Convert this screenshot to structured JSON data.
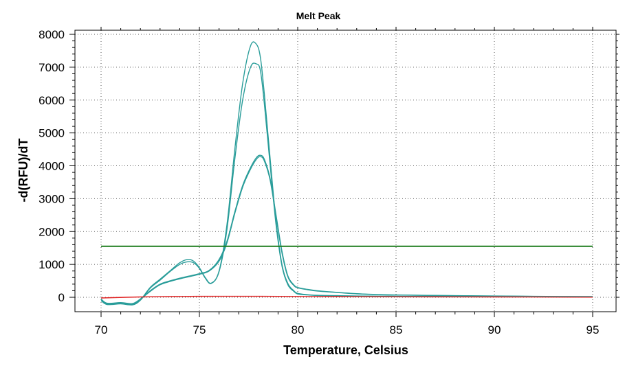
{
  "chart_data": {
    "type": "line",
    "title": "Melt Peak",
    "xlabel": "Temperature, Celsius",
    "ylabel": "-d(RFU)/dT",
    "xlim": [
      70,
      95
    ],
    "ylim": [
      -350,
      8150
    ],
    "x_ticks": [
      70,
      75,
      80,
      85,
      90,
      95
    ],
    "y_ticks": [
      0,
      1000,
      2000,
      3000,
      4000,
      5000,
      6000,
      7000,
      8000
    ],
    "grid": true,
    "colors": {
      "sample": "#2a9d9a",
      "threshold": "#1e7d1e",
      "negative": "#e02020"
    },
    "series": [
      {
        "role": "sample",
        "x": [
          70,
          70.3,
          71,
          71.6,
          72,
          72.5,
          73,
          73.5,
          74,
          74.4,
          74.7,
          75,
          75.3,
          75.6,
          76,
          76.4,
          76.8,
          77.2,
          77.6,
          77.9,
          78.1,
          78.3,
          78.6,
          78.9,
          79.2,
          79.5,
          79.8,
          80,
          80.5,
          81,
          82,
          83,
          85,
          88,
          90,
          92,
          95
        ],
        "y": [
          -100,
          -200,
          -180,
          -210,
          -80,
          300,
          550,
          800,
          1050,
          1150,
          1100,
          900,
          600,
          430,
          800,
          2200,
          4500,
          6500,
          7650,
          7700,
          7300,
          6200,
          4200,
          2300,
          1000,
          420,
          200,
          120,
          80,
          60,
          50,
          40,
          30,
          25,
          20,
          15,
          10
        ]
      },
      {
        "role": "sample",
        "x": [
          70,
          70.3,
          71,
          71.6,
          72,
          72.5,
          73,
          73.5,
          74,
          74.4,
          74.7,
          75,
          75.3,
          75.6,
          76,
          76.4,
          76.8,
          77.2,
          77.6,
          77.9,
          78.1,
          78.3,
          78.6,
          78.9,
          79.2,
          79.5,
          79.8,
          80,
          80.5,
          81,
          82,
          83,
          85,
          88,
          90,
          92,
          95
        ],
        "y": [
          -100,
          -220,
          -200,
          -230,
          -90,
          280,
          520,
          780,
          1000,
          1080,
          1050,
          880,
          580,
          420,
          780,
          2050,
          4200,
          6000,
          7000,
          7100,
          6900,
          5900,
          4000,
          2200,
          950,
          380,
          180,
          100,
          70,
          55,
          45,
          38,
          28,
          22,
          18,
          14,
          10
        ]
      },
      {
        "role": "sample",
        "x": [
          70,
          70.3,
          71,
          71.6,
          72,
          72.5,
          73,
          73.5,
          74,
          75,
          75.5,
          76,
          76.4,
          76.8,
          77.2,
          77.6,
          77.9,
          78.1,
          78.3,
          78.6,
          78.9,
          79.2,
          79.5,
          79.8,
          80,
          80.5,
          81,
          82,
          83,
          84,
          85,
          88,
          90,
          92,
          95
        ],
        "y": [
          -50,
          -180,
          -160,
          -190,
          -50,
          200,
          400,
          500,
          580,
          720,
          820,
          1150,
          1700,
          2600,
          3400,
          3950,
          4250,
          4320,
          4200,
          3600,
          2500,
          1400,
          650,
          380,
          300,
          240,
          200,
          150,
          110,
          85,
          70,
          50,
          40,
          30,
          20
        ]
      },
      {
        "role": "sample",
        "x": [
          70,
          70.3,
          71,
          71.6,
          72,
          72.5,
          73,
          73.5,
          74,
          75,
          75.5,
          76,
          76.4,
          76.8,
          77.2,
          77.6,
          77.9,
          78.1,
          78.3,
          78.6,
          78.9,
          79.2,
          79.5,
          79.8,
          80,
          80.5,
          81,
          82,
          83,
          84,
          85,
          88,
          90,
          92,
          95
        ],
        "y": [
          -60,
          -200,
          -180,
          -210,
          -60,
          180,
          380,
          480,
          560,
          700,
          800,
          1100,
          1650,
          2550,
          3350,
          3900,
          4200,
          4280,
          4150,
          3550,
          2450,
          1350,
          620,
          360,
          290,
          230,
          190,
          145,
          105,
          80,
          68,
          48,
          38,
          28,
          18
        ]
      },
      {
        "role": "threshold",
        "x": [
          70,
          95
        ],
        "y": [
          1550,
          1550
        ]
      },
      {
        "role": "negative",
        "x": [
          70,
          72,
          74,
          76,
          78,
          80,
          82,
          85,
          90,
          95
        ],
        "y": [
          -20,
          10,
          25,
          30,
          30,
          25,
          20,
          15,
          10,
          5
        ]
      }
    ]
  }
}
